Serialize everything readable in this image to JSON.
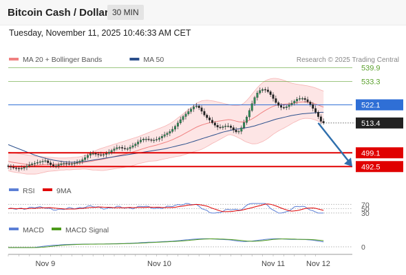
{
  "header": {
    "title": "Bitcoin Cash / Dollar",
    "timeframe": "30 MIN"
  },
  "timestamp": "Tuesday, November 11, 2025 10:46:33 AM CET",
  "legend": [
    {
      "label": "MA 20 + Bollinger Bands",
      "color": "#f08080"
    },
    {
      "label": "MA 50",
      "color": "#2b4f8c"
    }
  ],
  "credit": "Research © 2025 Trading Central",
  "chart_data": {
    "type": "candlestick",
    "ylim": [
      486,
      546
    ],
    "x_labels": [
      "Nov 9",
      "Nov 10",
      "Nov 11",
      "Nov 12"
    ],
    "x_label_idx": [
      14,
      57,
      100,
      117
    ],
    "current_price": 513.4,
    "levels": [
      {
        "value": 539.9,
        "label": "539.9",
        "kind": "resistance",
        "color": "#5aa02c"
      },
      {
        "value": 533.3,
        "label": "533.3",
        "kind": "resistance",
        "color": "#5aa02c"
      },
      {
        "value": 522.1,
        "label": "522.1",
        "kind": "pivot",
        "color": "#2f6fd6"
      },
      {
        "value": 499.1,
        "label": "499.1",
        "kind": "support",
        "color": "#e00000"
      },
      {
        "value": 492.5,
        "label": "492.5",
        "kind": "support",
        "color": "#e00000"
      }
    ],
    "forecast": {
      "from_idx": 117,
      "from": 513.4,
      "to": 492.5
    },
    "close": [
      492.5,
      492.2,
      491.9,
      491.7,
      491.5,
      491.7,
      492.2,
      492.8,
      493.4,
      493.8,
      494.1,
      494.5,
      494.8,
      495.1,
      495.3,
      494.3,
      493.4,
      492.8,
      492.9,
      493.4,
      493.9,
      494.0,
      493.9,
      493.8,
      493.9,
      494.1,
      494.5,
      495.1,
      495.8,
      496.8,
      497.9,
      498.7,
      498.8,
      498.4,
      498.2,
      498.0,
      498.3,
      498.8,
      499.4,
      500.2,
      501.0,
      501.6,
      501.7,
      501.3,
      501.0,
      501.1,
      501.8,
      502.5,
      503.3,
      504.3,
      505.2,
      505.7,
      505.7,
      505.4,
      505.2,
      505.2,
      505.5,
      506.2,
      507.0,
      507.8,
      508.5,
      509.3,
      510.4,
      511.8,
      513.4,
      515.0,
      516.5,
      517.7,
      518.9,
      520.1,
      521.2,
      521.6,
      520.7,
      519.0,
      517.2,
      515.9,
      514.8,
      513.5,
      512.3,
      511.4,
      511.2,
      511.6,
      512.0,
      512.0,
      511.2,
      510.0,
      509.1,
      509.4,
      511.1,
      513.6,
      516.3,
      519.4,
      522.7,
      525.6,
      527.8,
      529.0,
      529.5,
      529.3,
      528.4,
      527.0,
      525.1,
      523.2,
      521.8,
      520.9,
      520.7,
      521.2,
      522.1,
      522.9,
      523.9,
      524.8,
      525.2,
      525.2,
      524.6,
      523.5,
      522.3,
      520.4,
      518.6,
      516.4,
      514.2,
      513.4
    ],
    "ma20": [
      495.0,
      494.7,
      494.5,
      494.3,
      494.1,
      493.9,
      493.7,
      493.5,
      493.4,
      493.3,
      493.2,
      493.2,
      493.3,
      493.4,
      493.5,
      493.6,
      493.6,
      493.6,
      493.6,
      493.6,
      493.7,
      493.7,
      493.8,
      493.8,
      493.9,
      494.0,
      494.1,
      494.2,
      494.4,
      494.6,
      494.8,
      495.0,
      495.2,
      495.5,
      495.7,
      495.9,
      496.1,
      496.4,
      496.7,
      497.0,
      497.3,
      497.6,
      497.9,
      498.2,
      498.5,
      498.8,
      499.1,
      499.5,
      499.9,
      500.3,
      500.7,
      501.1,
      501.5,
      501.9,
      502.2,
      502.5,
      502.8,
      503.2,
      503.6,
      504.0,
      504.4,
      504.9,
      505.4,
      506.0,
      506.6,
      507.2,
      507.9,
      508.6,
      509.3,
      510.0,
      510.7,
      511.4,
      511.9,
      512.4,
      512.8,
      513.2,
      513.5,
      513.8,
      514.0,
      514.2,
      514.4,
      514.6,
      514.8,
      515.0,
      514.9,
      514.6,
      514.3,
      514.0,
      513.9,
      513.9,
      514.2,
      514.7,
      515.3,
      516.1,
      516.9,
      517.8,
      518.6,
      519.4,
      520.1,
      520.8,
      521.4,
      521.8,
      522.1,
      522.3,
      522.4,
      522.5,
      522.6,
      522.8,
      523.0,
      523.2,
      523.4,
      523.5,
      523.5,
      523.4,
      523.2,
      522.9,
      522.5,
      522.0,
      521.5,
      521.0
    ],
    "ma50": [
      503.0,
      502.5,
      502.0,
      501.5,
      501.0,
      500.5,
      500.0,
      499.5,
      499.0,
      498.5,
      498.0,
      497.6,
      497.2,
      496.8,
      496.5,
      496.2,
      495.9,
      495.6,
      495.4,
      495.2,
      495.0,
      494.8,
      494.7,
      494.6,
      494.6,
      494.6,
      494.7,
      494.8,
      494.9,
      495.0,
      495.2,
      495.4,
      495.6,
      495.8,
      496.0,
      496.2,
      496.4,
      496.6,
      496.8,
      497.0,
      497.2,
      497.4,
      497.6,
      497.8,
      498.0,
      498.2,
      498.4,
      498.6,
      498.8,
      499.0,
      499.2,
      499.4,
      499.6,
      499.8,
      500.0,
      500.2,
      500.4,
      500.6,
      500.8,
      501.0,
      501.3,
      501.6,
      501.9,
      502.2,
      502.5,
      502.8,
      503.1,
      503.4,
      503.8,
      504.2,
      504.6,
      505.0,
      505.4,
      505.8,
      506.2,
      506.6,
      507.0,
      507.4,
      507.8,
      508.2,
      508.6,
      509.0,
      509.3,
      509.6,
      509.9,
      510.2,
      510.4,
      510.6,
      510.8,
      511.0,
      511.2,
      511.4,
      511.7,
      512.0,
      512.4,
      512.8,
      513.2,
      513.6,
      514.0,
      514.4,
      514.8,
      515.2,
      515.5,
      515.8,
      516.1,
      516.4,
      516.7,
      517.0,
      517.2,
      517.4,
      517.6,
      517.8,
      517.9,
      518.0,
      518.1,
      518.2,
      518.3,
      518.4,
      518.5,
      518.5
    ],
    "bb_upper": [
      499.5,
      499.3,
      499.1,
      498.9,
      498.7,
      498.5,
      498.3,
      498.1,
      497.9,
      497.7,
      497.5,
      497.4,
      497.3,
      497.2,
      497.1,
      497.0,
      496.9,
      496.8,
      496.7,
      496.6,
      496.6,
      496.6,
      496.6,
      496.7,
      496.8,
      496.9,
      497.0,
      497.2,
      497.5,
      497.9,
      498.4,
      499.0,
      499.6,
      500.2,
      500.7,
      501.2,
      501.6,
      502.0,
      502.4,
      502.8,
      503.2,
      503.6,
      504.0,
      504.4,
      504.8,
      505.2,
      505.6,
      506.0,
      506.4,
      506.8,
      507.3,
      507.8,
      508.3,
      508.8,
      509.3,
      509.8,
      510.3,
      510.8,
      511.3,
      511.8,
      512.4,
      513.1,
      513.9,
      514.8,
      515.8,
      516.8,
      517.8,
      518.8,
      519.8,
      520.8,
      521.8,
      522.8,
      523.5,
      524.0,
      524.2,
      524.3,
      524.2,
      524.0,
      523.8,
      523.5,
      523.2,
      522.9,
      522.6,
      522.3,
      522.0,
      521.8,
      521.7,
      521.8,
      522.2,
      523.0,
      524.2,
      525.6,
      527.2,
      528.8,
      530.3,
      531.6,
      532.7,
      533.6,
      534.2,
      534.6,
      534.8,
      534.8,
      534.6,
      534.3,
      533.9,
      533.4,
      532.9,
      532.5,
      532.2,
      532.0,
      531.8,
      531.6,
      531.4,
      531.2,
      530.9,
      530.6,
      530.2,
      529.7,
      529.2,
      528.7
    ],
    "bb_lower": [
      490.5,
      490.1,
      489.9,
      489.7,
      489.5,
      489.3,
      489.1,
      488.9,
      488.9,
      488.9,
      488.9,
      489.0,
      489.3,
      489.6,
      489.9,
      490.2,
      490.3,
      490.4,
      490.5,
      490.6,
      490.8,
      490.8,
      491.0,
      490.9,
      491.0,
      491.1,
      491.2,
      491.2,
      491.3,
      491.3,
      491.2,
      491.0,
      490.8,
      490.8,
      490.7,
      490.6,
      490.6,
      490.8,
      491.0,
      491.2,
      491.4,
      491.6,
      491.8,
      492.0,
      492.2,
      492.4,
      492.6,
      493.0,
      493.4,
      493.8,
      494.1,
      494.4,
      494.7,
      495.0,
      495.1,
      495.2,
      495.3,
      495.6,
      495.9,
      496.2,
      496.4,
      496.7,
      496.9,
      497.2,
      497.4,
      497.6,
      498.0,
      498.4,
      498.8,
      499.2,
      499.6,
      500.0,
      500.3,
      500.8,
      501.4,
      502.1,
      502.8,
      503.6,
      504.2,
      504.9,
      505.6,
      506.3,
      507.0,
      507.7,
      507.8,
      507.4,
      506.9,
      506.2,
      505.6,
      504.8,
      504.2,
      503.8,
      503.4,
      503.4,
      503.5,
      504.0,
      504.5,
      505.2,
      506.0,
      507.0,
      508.0,
      508.8,
      509.6,
      510.3,
      510.9,
      511.6,
      512.3,
      513.1,
      513.8,
      514.4,
      515.0,
      515.4,
      515.6,
      515.6,
      515.5,
      515.2,
      514.8,
      514.3,
      513.8,
      513.3
    ]
  },
  "rsi": {
    "label": "RSI",
    "signal_label": "9MA",
    "color": "#5b7fd6",
    "signal_color": "#e00000",
    "levels": [
      70,
      50,
      30
    ],
    "level_labels": [
      "70",
      "50",
      "30"
    ]
  },
  "macd": {
    "label": "MACD",
    "signal_label": "MACD Signal",
    "color": "#5b7fd6",
    "signal_color": "#4c9a1a",
    "zero_label": "0"
  }
}
